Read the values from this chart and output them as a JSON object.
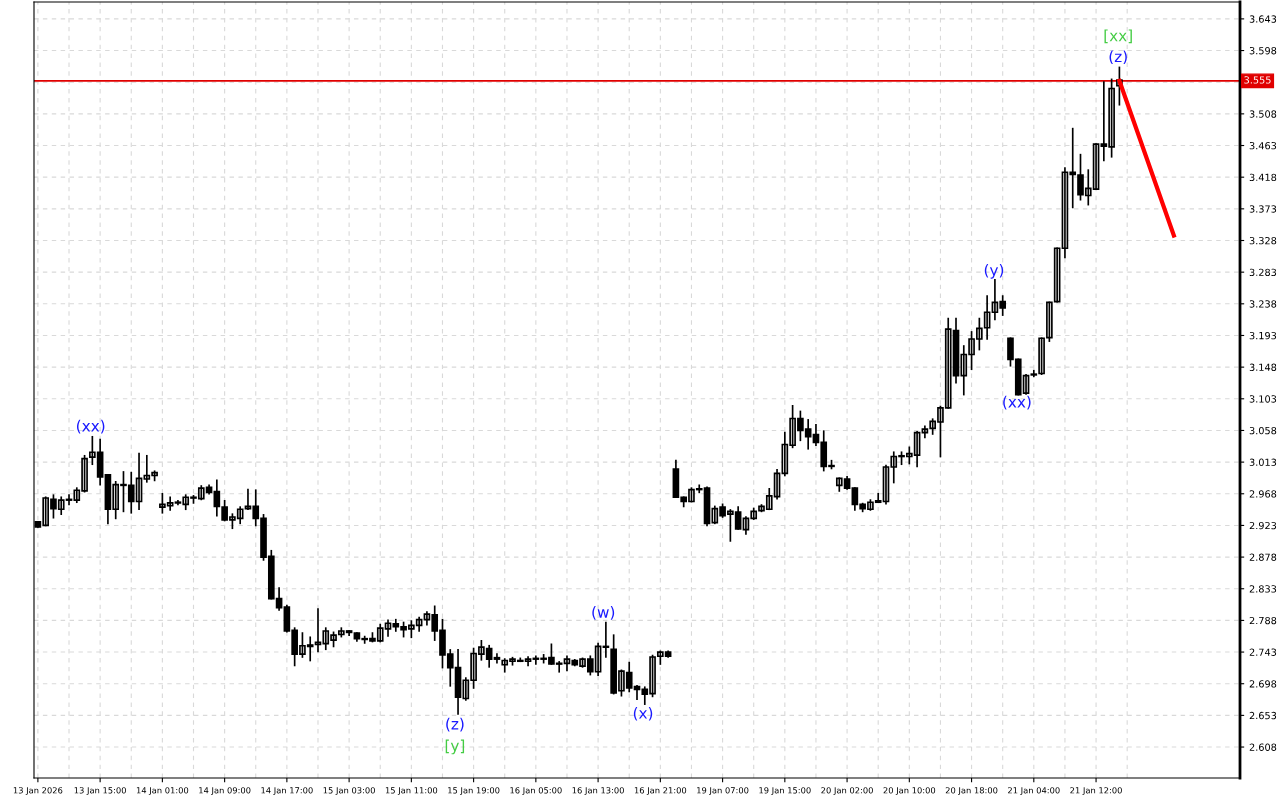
{
  "chart_data": {
    "type": "candlestick",
    "categories": [
      "13 Jan 2026",
      null,
      null,
      null,
      null,
      null,
      null,
      null,
      "13 Jan 15:00",
      null,
      null,
      null,
      null,
      null,
      null,
      null,
      "14 Jan 01:00",
      null,
      null,
      null,
      null,
      null,
      null,
      null,
      "14 Jan 09:00",
      null,
      null,
      null,
      null,
      null,
      null,
      null,
      "14 Jan 17:00",
      null,
      null,
      null,
      null,
      null,
      null,
      null,
      "15 Jan 03:00",
      null,
      null,
      null,
      null,
      null,
      null,
      null,
      "15 Jan 11:00",
      null,
      null,
      null,
      null,
      null,
      null,
      null,
      "15 Jan 19:00",
      null,
      null,
      null,
      null,
      null,
      null,
      null,
      "16 Jan 05:00",
      null,
      null,
      null,
      null,
      null,
      null,
      null,
      "16 Jan 13:00",
      null,
      null,
      null,
      null,
      null,
      null,
      null,
      "16 Jan 21:00",
      null,
      null,
      null,
      null,
      null,
      null,
      null,
      "19 Jan 07:00",
      null,
      null,
      null,
      null,
      null,
      null,
      null,
      "19 Jan 15:00",
      null,
      null,
      null,
      null,
      null,
      null,
      null,
      "20 Jan 02:00",
      null,
      null,
      null,
      null,
      null,
      null,
      null,
      "20 Jan 10:00",
      null,
      null,
      null,
      null,
      null,
      null,
      null,
      "20 Jan 18:00",
      null,
      null,
      null,
      null,
      null,
      null,
      null,
      "21 Jan 04:00",
      null,
      null,
      null,
      null,
      null,
      null,
      null,
      "21 Jan 12:00",
      null,
      null,
      null,
      null,
      null,
      null,
      null,
      null,
      null,
      null,
      null,
      null,
      null,
      null,
      null,
      null,
      null,
      null
    ],
    "ohlc": [
      [
        2.928,
        2.928,
        2.921,
        2.921
      ],
      [
        2.923,
        2.963,
        2.923,
        2.962
      ],
      [
        2.96,
        2.966,
        2.934,
        2.947
      ],
      [
        2.946,
        2.963,
        2.939,
        2.959
      ],
      [
        2.959,
        2.966,
        2.953,
        2.96
      ],
      [
        2.959,
        2.976,
        2.956,
        2.973
      ],
      [
        2.972,
        3.022,
        2.971,
        3.018
      ],
      [
        3.02,
        3.049,
        3.01,
        3.027
      ],
      [
        3.027,
        3.045,
        2.981,
        2.992
      ],
      [
        2.995,
        2.995,
        2.926,
        2.946
      ],
      [
        2.946,
        2.985,
        2.933,
        2.981
      ],
      [
        2.98,
        2.999,
        2.943,
        2.981
      ],
      [
        2.98,
        2.998,
        2.941,
        2.957
      ],
      [
        2.957,
        3.025,
        2.946,
        2.99
      ],
      [
        2.989,
        3.022,
        2.985,
        2.994
      ],
      [
        2.994,
        3.0,
        2.987,
        2.998
      ],
      [
        2.949,
        2.968,
        2.941,
        2.953
      ],
      [
        2.951,
        2.963,
        2.945,
        2.955
      ],
      [
        2.956,
        2.958,
        2.953,
        2.955
      ],
      [
        2.953,
        2.966,
        2.946,
        2.963
      ],
      [
        2.963,
        2.965,
        2.955,
        2.962
      ],
      [
        2.961,
        2.979,
        2.96,
        2.976
      ],
      [
        2.977,
        2.98,
        2.968,
        2.97
      ],
      [
        2.971,
        2.987,
        2.937,
        2.95
      ],
      [
        2.949,
        2.958,
        2.93,
        2.931
      ],
      [
        2.931,
        2.939,
        2.919,
        2.935
      ],
      [
        2.933,
        2.949,
        2.926,
        2.946
      ],
      [
        2.947,
        2.974,
        2.946,
        2.95
      ],
      [
        2.95,
        2.973,
        2.923,
        2.933
      ],
      [
        2.933,
        2.938,
        2.874,
        2.878
      ],
      [
        2.879,
        2.887,
        2.819,
        2.819
      ],
      [
        2.819,
        2.834,
        2.803,
        2.806
      ],
      [
        2.807,
        2.809,
        2.772,
        2.773
      ],
      [
        2.774,
        2.777,
        2.724,
        2.74
      ],
      [
        2.74,
        2.77,
        2.736,
        2.752
      ],
      [
        2.753,
        2.764,
        2.731,
        2.751
      ],
      [
        2.754,
        2.804,
        2.744,
        2.757
      ],
      [
        2.755,
        2.777,
        2.747,
        2.773
      ],
      [
        2.76,
        2.771,
        2.751,
        2.767
      ],
      [
        2.768,
        2.777,
        2.765,
        2.773
      ],
      [
        2.773,
        2.773,
        2.767,
        2.771
      ],
      [
        2.77,
        2.77,
        2.759,
        2.762
      ],
      [
        2.761,
        2.765,
        2.756,
        2.762
      ],
      [
        2.762,
        2.77,
        2.758,
        2.759
      ],
      [
        2.759,
        2.782,
        2.758,
        2.777
      ],
      [
        2.776,
        2.788,
        2.766,
        2.784
      ],
      [
        2.783,
        2.789,
        2.773,
        2.779
      ],
      [
        2.779,
        2.785,
        2.765,
        2.775
      ],
      [
        2.776,
        2.787,
        2.764,
        2.781
      ],
      [
        2.781,
        2.792,
        2.773,
        2.789
      ],
      [
        2.789,
        2.8,
        2.782,
        2.797
      ],
      [
        2.796,
        2.808,
        2.76,
        2.773
      ],
      [
        2.774,
        2.789,
        2.721,
        2.739
      ],
      [
        2.74,
        2.746,
        2.695,
        2.721
      ],
      [
        2.721,
        2.746,
        2.655,
        2.679
      ],
      [
        2.677,
        2.706,
        2.675,
        2.703
      ],
      [
        2.703,
        2.748,
        2.692,
        2.741
      ],
      [
        2.74,
        2.759,
        2.732,
        2.75
      ],
      [
        2.748,
        2.752,
        2.722,
        2.733
      ],
      [
        2.733,
        2.74,
        2.728,
        2.735
      ],
      [
        2.725,
        2.733,
        2.715,
        2.731
      ],
      [
        2.73,
        2.735,
        2.725,
        2.733
      ],
      [
        2.731,
        2.734,
        2.73,
        2.73
      ],
      [
        2.73,
        2.736,
        2.724,
        2.733
      ],
      [
        2.733,
        2.737,
        2.726,
        2.734
      ],
      [
        2.733,
        2.739,
        2.728,
        2.734
      ],
      [
        2.735,
        2.754,
        2.726,
        2.726
      ],
      [
        2.727,
        2.729,
        2.715,
        2.726
      ],
      [
        2.727,
        2.737,
        2.717,
        2.733
      ],
      [
        2.731,
        2.732,
        2.724,
        2.725
      ],
      [
        2.723,
        2.734,
        2.722,
        2.733
      ],
      [
        2.733,
        2.737,
        2.711,
        2.715
      ],
      [
        2.715,
        2.755,
        2.71,
        2.751
      ],
      [
        2.75,
        2.785,
        2.736,
        2.751
      ],
      [
        2.747,
        2.767,
        2.684,
        2.685
      ],
      [
        2.688,
        2.717,
        2.681,
        2.716
      ],
      [
        2.714,
        2.728,
        2.687,
        2.692
      ],
      [
        2.694,
        2.695,
        2.676,
        2.69
      ],
      [
        2.69,
        2.693,
        2.669,
        2.683
      ],
      [
        2.684,
        2.738,
        2.68,
        2.736
      ],
      [
        2.737,
        2.744,
        2.726,
        2.743
      ],
      [
        2.743,
        2.744,
        2.736,
        2.737
      ],
      [
        3.003,
        3.015,
        2.963,
        2.963
      ],
      [
        2.963,
        2.963,
        2.95,
        2.957
      ],
      [
        2.957,
        2.976,
        2.957,
        2.974
      ],
      [
        2.974,
        2.98,
        2.97,
        2.975
      ],
      [
        2.976,
        2.977,
        2.923,
        2.926
      ],
      [
        2.927,
        2.95,
        2.926,
        2.947
      ],
      [
        2.949,
        2.953,
        2.935,
        2.937
      ],
      [
        2.939,
        2.945,
        2.901,
        2.943
      ],
      [
        2.942,
        2.949,
        2.918,
        2.918
      ],
      [
        2.917,
        2.935,
        2.911,
        2.933
      ],
      [
        2.933,
        2.947,
        2.932,
        2.943
      ],
      [
        2.944,
        2.952,
        2.943,
        2.95
      ],
      [
        2.946,
        2.975,
        2.946,
        2.965
      ],
      [
        2.964,
        3.002,
        2.961,
        2.997
      ],
      [
        2.997,
        3.055,
        2.994,
        3.038
      ],
      [
        3.037,
        3.093,
        3.034,
        3.075
      ],
      [
        3.075,
        3.085,
        3.044,
        3.058
      ],
      [
        3.06,
        3.073,
        3.032,
        3.049
      ],
      [
        3.052,
        3.066,
        3.037,
        3.041
      ],
      [
        3.041,
        3.057,
        3.001,
        3.007
      ],
      [
        3.008,
        3.015,
        3.004,
        3.007
      ],
      [
        2.98,
        2.99,
        2.972,
        2.99
      ],
      [
        2.989,
        2.992,
        2.975,
        2.976
      ],
      [
        2.976,
        2.976,
        2.945,
        2.953
      ],
      [
        2.953,
        2.954,
        2.943,
        2.947
      ],
      [
        2.946,
        2.959,
        2.945,
        2.956
      ],
      [
        2.958,
        2.968,
        2.956,
        2.956
      ],
      [
        2.957,
        3.008,
        2.954,
        3.006
      ],
      [
        3.006,
        3.027,
        2.984,
        3.021
      ],
      [
        3.021,
        3.027,
        3.01,
        3.022
      ],
      [
        3.021,
        3.034,
        3.011,
        3.025
      ],
      [
        3.023,
        3.056,
        3.007,
        3.055
      ],
      [
        3.055,
        3.064,
        3.048,
        3.06
      ],
      [
        3.061,
        3.074,
        3.053,
        3.071
      ],
      [
        3.07,
        3.092,
        3.021,
        3.09
      ],
      [
        3.09,
        3.217,
        3.09,
        3.202
      ],
      [
        3.2,
        3.217,
        3.126,
        3.136
      ],
      [
        3.136,
        3.178,
        3.109,
        3.166
      ],
      [
        3.166,
        3.198,
        3.145,
        3.188
      ],
      [
        3.188,
        3.217,
        3.173,
        3.203
      ],
      [
        3.204,
        3.249,
        3.188,
        3.226
      ],
      [
        3.226,
        3.272,
        3.216,
        3.24
      ],
      [
        3.241,
        3.249,
        3.222,
        3.232
      ],
      [
        3.189,
        3.189,
        3.15,
        3.159
      ],
      [
        3.159,
        3.159,
        3.109,
        3.109
      ],
      [
        3.111,
        3.137,
        3.11,
        3.136
      ],
      [
        3.137,
        3.143,
        3.135,
        3.138
      ],
      [
        3.139,
        3.189,
        3.138,
        3.189
      ],
      [
        3.19,
        3.24,
        3.185,
        3.24
      ],
      [
        3.241,
        3.317,
        3.241,
        3.317
      ],
      [
        3.317,
        3.431,
        3.304,
        3.425
      ],
      [
        3.425,
        3.487,
        3.375,
        3.422
      ],
      [
        3.421,
        3.45,
        3.386,
        3.393
      ],
      [
        3.392,
        3.428,
        3.379,
        3.402
      ],
      [
        3.401,
        3.465,
        3.401,
        3.465
      ],
      [
        3.465,
        3.553,
        3.442,
        3.462
      ],
      [
        3.461,
        3.557,
        3.447,
        3.544
      ],
      [
        3.548,
        3.574,
        3.521,
        3.556
      ],
      null,
      null,
      null,
      null,
      null,
      null,
      null,
      null,
      null,
      null,
      null,
      null,
      null,
      null,
      null
    ],
    "series": [
      {
        "type": "line",
        "color": "#ff0000",
        "values": [
          null,
          null,
          null,
          null,
          null,
          null,
          null,
          null,
          null,
          null,
          null,
          null,
          null,
          null,
          null,
          null,
          null,
          null,
          null,
          null,
          null,
          null,
          null,
          null,
          null,
          null,
          null,
          null,
          null,
          null,
          null,
          null,
          null,
          null,
          null,
          null,
          null,
          null,
          null,
          null,
          null,
          null,
          null,
          null,
          null,
          null,
          null,
          null,
          null,
          null,
          null,
          null,
          null,
          null,
          null,
          null,
          null,
          null,
          null,
          null,
          null,
          null,
          null,
          null,
          null,
          null,
          null,
          null,
          null,
          null,
          null,
          null,
          null,
          null,
          null,
          null,
          null,
          null,
          null,
          null,
          null,
          null,
          null,
          null,
          null,
          null,
          null,
          null,
          null,
          null,
          null,
          null,
          null,
          null,
          null,
          null,
          null,
          null,
          null,
          null,
          null,
          null,
          null,
          null,
          null,
          null,
          null,
          null,
          null,
          null,
          null,
          null,
          null,
          null,
          null,
          null,
          null,
          null,
          null,
          null,
          null,
          null,
          null,
          null,
          null,
          null,
          null,
          null,
          null,
          null,
          null,
          null,
          null,
          null,
          null,
          null,
          null,
          null,
          null,
          3.555,
          null,
          null,
          null,
          null,
          null,
          null,
          3.335,
          null,
          null,
          null,
          null,
          null,
          null,
          null,
          null
        ]
      }
    ],
    "ylim": [
      2.564,
      3.667
    ],
    "yticks": [
      2.608,
      2.653,
      2.698,
      2.743,
      2.788,
      2.833,
      2.878,
      2.923,
      2.968,
      3.013,
      3.058,
      3.103,
      3.148,
      3.193,
      3.238,
      3.283,
      3.328,
      3.373,
      3.418,
      3.463,
      3.508,
      {
        "value": 3.553,
        "label": null
      },
      3.598,
      3.643
    ],
    "ref_lines": [
      {
        "axis": "y",
        "value": 3.555,
        "label": "3.555",
        "color": "#e00000"
      }
    ],
    "annotations": [
      "(xx)",
      "(z)",
      "[y]",
      "(w)",
      "(x)",
      "(y)",
      "(xx)",
      "(z)",
      "[xx]"
    ],
    "grid": true
  }
}
